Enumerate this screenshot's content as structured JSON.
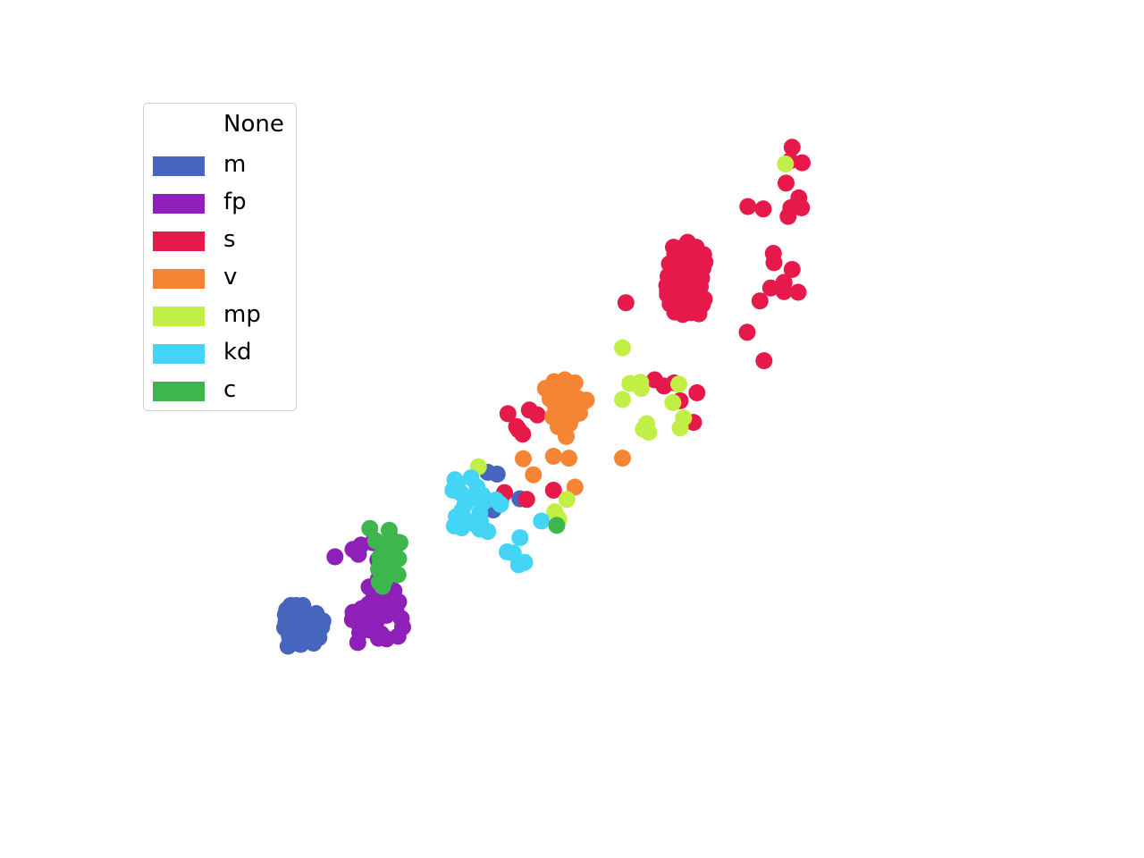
{
  "chart_data": {
    "type": "scatter",
    "title": "",
    "xlabel": "",
    "ylabel": "",
    "axes_visible": false,
    "grid": false,
    "xlim": [
      0,
      100
    ],
    "ylim": [
      0,
      100
    ],
    "legend": {
      "title": "None",
      "placement": "upper-left",
      "entries": [
        {
          "label": "m",
          "color": "#4565be"
        },
        {
          "label": "fp",
          "color": "#8e1fb8"
        },
        {
          "label": "s",
          "color": "#e5194a"
        },
        {
          "label": "v",
          "color": "#f58535"
        },
        {
          "label": "mp",
          "color": "#c1ef46"
        },
        {
          "label": "kd",
          "color": "#44d4f6"
        },
        {
          "label": "c",
          "color": "#3eb64e"
        }
      ]
    },
    "series": [
      {
        "name": "m",
        "color": "#4565be",
        "points": [
          [
            4.1,
            21.4
          ],
          [
            4.7,
            22.1
          ],
          [
            5.5,
            22.1
          ],
          [
            6.5,
            22.1
          ],
          [
            3.9,
            20.6
          ],
          [
            5.0,
            20.9
          ],
          [
            6.0,
            21.1
          ],
          [
            7.0,
            20.3
          ],
          [
            4.0,
            19.5
          ],
          [
            5.0,
            19.6
          ],
          [
            6.0,
            19.7
          ],
          [
            7.2,
            18.9
          ],
          [
            3.8,
            18.5
          ],
          [
            4.8,
            18.2
          ],
          [
            5.8,
            18.5
          ],
          [
            6.8,
            18.4
          ],
          [
            8.5,
            20.8
          ],
          [
            8.8,
            19.9
          ],
          [
            9.3,
            18.6
          ],
          [
            8.2,
            18.1
          ],
          [
            8.9,
            16.9
          ],
          [
            4.5,
            17.1
          ],
          [
            5.5,
            16.7
          ],
          [
            6.5,
            16.9
          ],
          [
            7.4,
            17.0
          ],
          [
            8.1,
            16.0
          ],
          [
            5.6,
            16.0
          ],
          [
            4.3,
            15.5
          ],
          [
            6.2,
            15.8
          ],
          [
            7.2,
            17.7
          ],
          [
            9.5,
            19.6
          ],
          [
            8.0,
            17.5
          ],
          [
            34.1,
            43.7
          ],
          [
            35.5,
            43.4
          ],
          [
            38.9,
            39.4
          ],
          [
            34.2,
            38.4
          ],
          [
            34.9,
            37.6
          ],
          [
            36.0,
            38.9
          ]
        ]
      },
      {
        "name": "fp",
        "color": "#8e1fb8",
        "points": [
          [
            11.3,
            30.0
          ],
          [
            14.0,
            31.2
          ],
          [
            15.2,
            31.9
          ],
          [
            16.9,
            32.3
          ],
          [
            14.8,
            30.4
          ],
          [
            17.7,
            29.5
          ],
          [
            20.3,
            32.4
          ],
          [
            16.4,
            25.1
          ],
          [
            17.8,
            26.4
          ],
          [
            19.6,
            26.7
          ],
          [
            20.1,
            24.5
          ],
          [
            16.3,
            22.3
          ],
          [
            17.0,
            23.1
          ],
          [
            18.2,
            22.8
          ],
          [
            19.5,
            22.2
          ],
          [
            20.8,
            22.7
          ],
          [
            14.0,
            21.0
          ],
          [
            15.3,
            21.6
          ],
          [
            16.9,
            20.7
          ],
          [
            18.5,
            21.2
          ],
          [
            20.4,
            21.6
          ],
          [
            21.2,
            20.0
          ],
          [
            13.9,
            19.8
          ],
          [
            14.8,
            19.2
          ],
          [
            16.1,
            19.9
          ],
          [
            17.5,
            19.6
          ],
          [
            19.0,
            20.5
          ],
          [
            21.4,
            18.6
          ],
          [
            15.0,
            17.7
          ],
          [
            16.6,
            18.1
          ],
          [
            18.2,
            17.5
          ],
          [
            20.7,
            17.1
          ],
          [
            14.7,
            16.1
          ],
          [
            17.8,
            16.8
          ],
          [
            19.0,
            16.7
          ]
        ]
      },
      {
        "name": "s",
        "color": "#e5194a",
        "points": [
          [
            79.5,
            96.4
          ],
          [
            79.2,
            94.2
          ],
          [
            81.0,
            93.9
          ],
          [
            78.6,
            90.6
          ],
          [
            80.5,
            88.2
          ],
          [
            72.9,
            86.8
          ],
          [
            75.2,
            86.4
          ],
          [
            79.3,
            86.6
          ],
          [
            80.9,
            86.6
          ],
          [
            78.9,
            85.2
          ],
          [
            76.7,
            79.2
          ],
          [
            76.8,
            77.7
          ],
          [
            79.5,
            76.6
          ],
          [
            78.3,
            74.5
          ],
          [
            76.3,
            73.6
          ],
          [
            78.3,
            73.0
          ],
          [
            80.4,
            72.9
          ],
          [
            74.7,
            71.5
          ],
          [
            72.8,
            66.4
          ],
          [
            75.3,
            61.8
          ],
          [
            54.7,
            71.2
          ],
          [
            59.0,
            58.7
          ],
          [
            60.4,
            57.7
          ],
          [
            61.9,
            58.2
          ],
          [
            65.3,
            56.6
          ],
          [
            62.8,
            55.3
          ],
          [
            64.8,
            51.8
          ],
          [
            37.1,
            53.2
          ],
          [
            40.3,
            53.8
          ],
          [
            41.5,
            53.0
          ],
          [
            38.7,
            50.6
          ],
          [
            39.3,
            49.9
          ],
          [
            38.4,
            51.1
          ],
          [
            36.6,
            40.4
          ],
          [
            39.9,
            39.3
          ],
          [
            43.9,
            40.8
          ],
          [
            62.0,
            79.0
          ],
          [
            62.8,
            80.0
          ],
          [
            63.9,
            81.0
          ],
          [
            65.2,
            80.2
          ],
          [
            66.3,
            79.0
          ],
          [
            61.2,
            77.5
          ],
          [
            62.4,
            77.0
          ],
          [
            63.6,
            77.2
          ],
          [
            64.9,
            77.5
          ],
          [
            66.2,
            76.8
          ],
          [
            61.0,
            75.5
          ],
          [
            62.3,
            75.8
          ],
          [
            63.5,
            75.4
          ],
          [
            64.8,
            75.9
          ],
          [
            66.0,
            75.2
          ],
          [
            60.8,
            74.0
          ],
          [
            62.0,
            74.2
          ],
          [
            63.2,
            74.0
          ],
          [
            64.5,
            74.3
          ],
          [
            65.8,
            73.8
          ],
          [
            60.9,
            72.5
          ],
          [
            62.1,
            72.8
          ],
          [
            63.3,
            72.3
          ],
          [
            64.6,
            72.6
          ],
          [
            65.9,
            72.2
          ],
          [
            61.3,
            71.0
          ],
          [
            62.5,
            71.3
          ],
          [
            63.7,
            70.8
          ],
          [
            64.9,
            71.2
          ],
          [
            66.1,
            70.9
          ],
          [
            62.0,
            69.7
          ],
          [
            63.2,
            69.3
          ],
          [
            64.4,
            69.6
          ],
          [
            65.6,
            69.4
          ],
          [
            61.8,
            80.2
          ],
          [
            66.5,
            77.8
          ],
          [
            60.9,
            73.2
          ],
          [
            66.4,
            71.8
          ],
          [
            63.0,
            78.3
          ],
          [
            64.2,
            78.7
          ],
          [
            65.3,
            76.4
          ],
          [
            62.7,
            76.3
          ],
          [
            63.9,
            73.1
          ],
          [
            62.6,
            70.2
          ]
        ]
      },
      {
        "name": "v",
        "color": "#f58535",
        "points": [
          [
            42.7,
            57.3
          ],
          [
            44.0,
            58.4
          ],
          [
            45.6,
            58.7
          ],
          [
            47.1,
            58.2
          ],
          [
            44.5,
            57.6
          ],
          [
            43.4,
            55.6
          ],
          [
            44.9,
            56.0
          ],
          [
            46.4,
            56.3
          ],
          [
            47.5,
            55.7
          ],
          [
            48.8,
            55.4
          ],
          [
            44.2,
            54.3
          ],
          [
            45.5,
            54.6
          ],
          [
            46.9,
            54.4
          ],
          [
            48.2,
            54.9
          ],
          [
            43.8,
            52.7
          ],
          [
            45.1,
            53.0
          ],
          [
            46.6,
            52.5
          ],
          [
            47.8,
            53.3
          ],
          [
            44.6,
            51.1
          ],
          [
            46.3,
            51.6
          ],
          [
            45.8,
            49.5
          ],
          [
            43.9,
            46.3
          ],
          [
            46.2,
            46.0
          ],
          [
            40.9,
            43.3
          ],
          [
            39.4,
            45.9
          ],
          [
            54.2,
            46.0
          ],
          [
            47.1,
            41.3
          ],
          [
            44.9,
            55.2
          ]
        ]
      },
      {
        "name": "mp",
        "color": "#c1ef46",
        "points": [
          [
            78.5,
            93.7
          ],
          [
            54.2,
            63.9
          ],
          [
            55.3,
            58.1
          ],
          [
            56.9,
            58.3
          ],
          [
            57.0,
            57.3
          ],
          [
            62.6,
            58.0
          ],
          [
            54.2,
            55.5
          ],
          [
            61.7,
            55.0
          ],
          [
            63.3,
            52.5
          ],
          [
            57.8,
            51.6
          ],
          [
            57.3,
            50.7
          ],
          [
            58.1,
            50.2
          ],
          [
            62.8,
            50.9
          ],
          [
            32.7,
            44.6
          ],
          [
            45.9,
            39.3
          ],
          [
            44.1,
            37.3
          ],
          [
            44.7,
            36.1
          ]
        ]
      },
      {
        "name": "kd",
        "color": "#44d4f6",
        "points": [
          [
            29.2,
            42.5
          ],
          [
            31.6,
            42.8
          ],
          [
            32.5,
            41.3
          ],
          [
            29.5,
            41.6
          ],
          [
            30.1,
            40.3
          ],
          [
            31.5,
            39.4
          ],
          [
            30.7,
            38.5
          ],
          [
            33.3,
            40.0
          ],
          [
            33.5,
            38.9
          ],
          [
            35.3,
            39.2
          ],
          [
            36.0,
            38.5
          ],
          [
            32.9,
            37.1
          ],
          [
            33.0,
            35.8
          ],
          [
            32.9,
            34.5
          ],
          [
            34.1,
            34.1
          ],
          [
            29.4,
            36.5
          ],
          [
            30.5,
            36.3
          ],
          [
            31.6,
            35.5
          ],
          [
            30.2,
            34.7
          ],
          [
            29.1,
            35.0
          ],
          [
            37.0,
            30.8
          ],
          [
            37.9,
            30.6
          ],
          [
            38.9,
            33.1
          ],
          [
            38.7,
            28.7
          ],
          [
            39.6,
            29.1
          ],
          [
            28.9,
            40.8
          ],
          [
            30.2,
            37.4
          ],
          [
            42.1,
            35.8
          ]
        ]
      },
      {
        "name": "c",
        "color": "#3eb64e",
        "points": [
          [
            16.5,
            34.6
          ],
          [
            19.4,
            34.3
          ],
          [
            17.4,
            32.6
          ],
          [
            19.6,
            32.8
          ],
          [
            21.0,
            32.3
          ],
          [
            18.6,
            31.0
          ],
          [
            20.2,
            30.7
          ],
          [
            20.8,
            29.7
          ],
          [
            18.1,
            29.1
          ],
          [
            19.2,
            29.1
          ],
          [
            17.8,
            28.0
          ],
          [
            19.6,
            27.5
          ],
          [
            20.7,
            27.1
          ],
          [
            18.8,
            26.3
          ],
          [
            17.9,
            25.9
          ],
          [
            18.4,
            25.2
          ],
          [
            19.9,
            31.2
          ],
          [
            18.0,
            30.0
          ],
          [
            44.4,
            35.1
          ]
        ]
      }
    ]
  }
}
